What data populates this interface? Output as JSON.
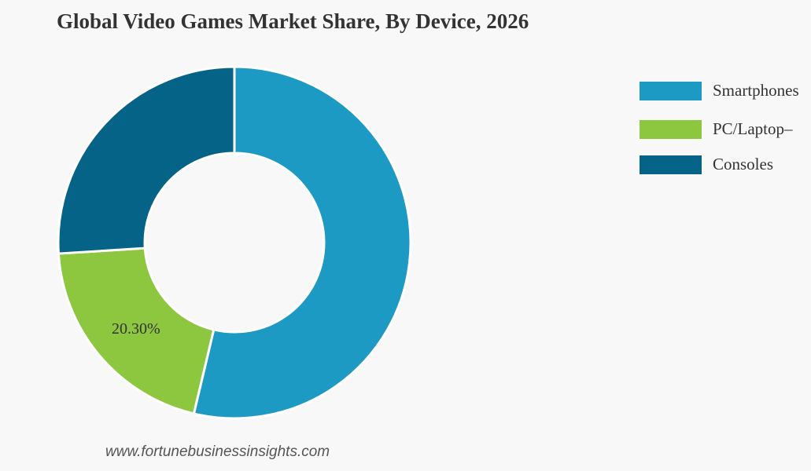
{
  "chart_data": {
    "type": "pie",
    "variant": "donut",
    "title": "Global Video Games Market Share, By Device, 2026",
    "categories": [
      "Smartphones",
      "PC/Laptop–",
      "Consoles"
    ],
    "values": [
      53.7,
      20.3,
      26.0
    ],
    "colors": [
      "#1d9ac3",
      "#8dc63f",
      "#056388"
    ],
    "data_labels": [
      "",
      "20.30%",
      ""
    ],
    "legend_position": "right"
  },
  "source": "www.fortunebusinessinsights.com"
}
